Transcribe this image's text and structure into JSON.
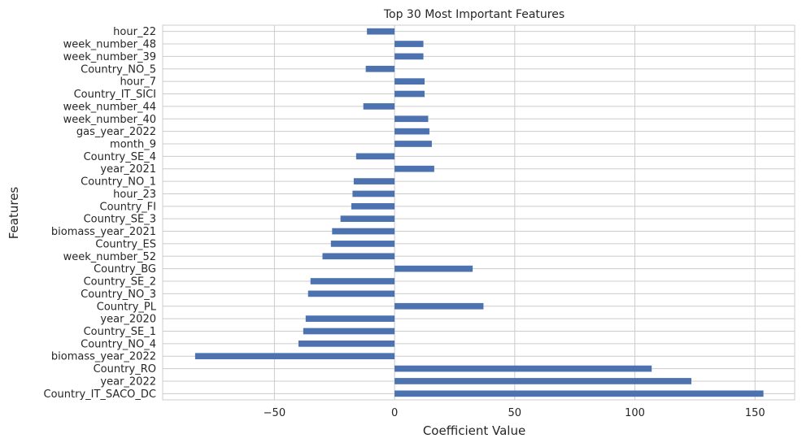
{
  "chart_data": {
    "type": "bar",
    "orientation": "horizontal",
    "title": "Top 30 Most Important Features",
    "xlabel": "Coefficient Value",
    "ylabel": "Features",
    "xlim": [
      -83,
      153
    ],
    "xticks": [
      -50,
      0,
      50,
      100,
      150
    ],
    "xtick_labels": [
      "−50",
      "0",
      "50",
      "100",
      "150"
    ],
    "grid": true,
    "bar_color": "#4c72b0",
    "categories": [
      "Country_IT_SACO_DC",
      "year_2022",
      "Country_RO",
      "biomass_year_2022",
      "Country_NO_4",
      "Country_SE_1",
      "year_2020",
      "Country_PL",
      "Country_NO_3",
      "Country_SE_2",
      "Country_BG",
      "week_number_52",
      "Country_ES",
      "biomass_year_2021",
      "Country_SE_3",
      "Country_FI",
      "hour_23",
      "Country_NO_1",
      "year_2021",
      "Country_SE_4",
      "month_9",
      "gas_year_2022",
      "week_number_40",
      "week_number_44",
      "Country_IT_SICI",
      "hour_7",
      "Country_NO_5",
      "week_number_39",
      "week_number_48",
      "hour_22"
    ],
    "values": [
      153.5,
      123.5,
      107,
      -83,
      -40,
      -38,
      -37,
      37,
      -36,
      -35,
      32.5,
      -30,
      -26.5,
      -26,
      -22.5,
      -18,
      -17.5,
      -17,
      16.5,
      -16,
      15.5,
      14.5,
      14,
      -13,
      12.5,
      12.5,
      -12,
      12,
      12,
      -11.5
    ]
  }
}
